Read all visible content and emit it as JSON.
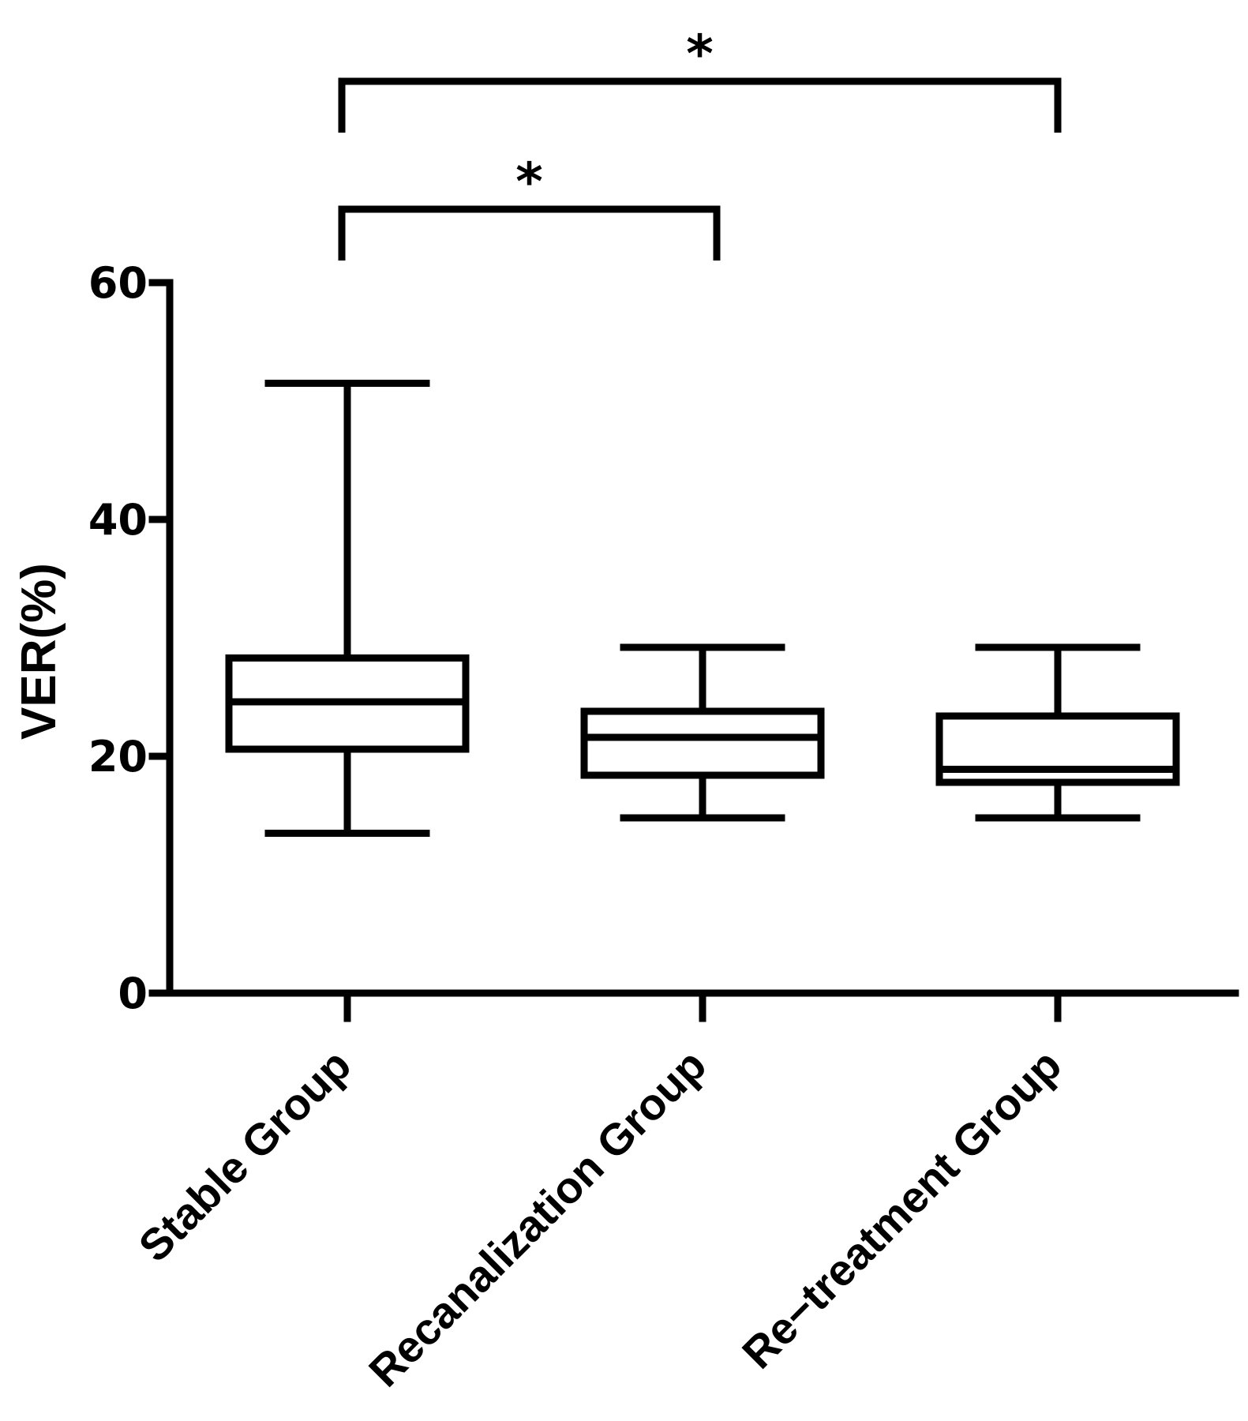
{
  "chart_data": {
    "type": "boxplot",
    "ylabel": "VER(%)",
    "xlabel": "",
    "title": "",
    "ylim": [
      0,
      60
    ],
    "yticks": [
      0,
      20,
      40,
      60
    ],
    "categories": [
      "Stable Group",
      "Recanalization Group",
      "Re−treatment Group"
    ],
    "boxes": [
      {
        "name": "Stable Group",
        "min": 13.5,
        "q1": 20.6,
        "median": 24.6,
        "q3": 28.3,
        "max": 51.5
      },
      {
        "name": "Recanalization Group",
        "min": 14.8,
        "q1": 18.4,
        "median": 21.6,
        "q3": 23.8,
        "max": 29.2
      },
      {
        "name": "Re−treatment Group",
        "min": 14.8,
        "q1": 17.8,
        "median": 18.9,
        "q3": 23.4,
        "max": 29.2
      }
    ],
    "significance": [
      {
        "from": 0,
        "to": 1,
        "label": "*"
      },
      {
        "from": 0,
        "to": 2,
        "label": "*"
      }
    ],
    "grid": false,
    "legend": "none"
  }
}
